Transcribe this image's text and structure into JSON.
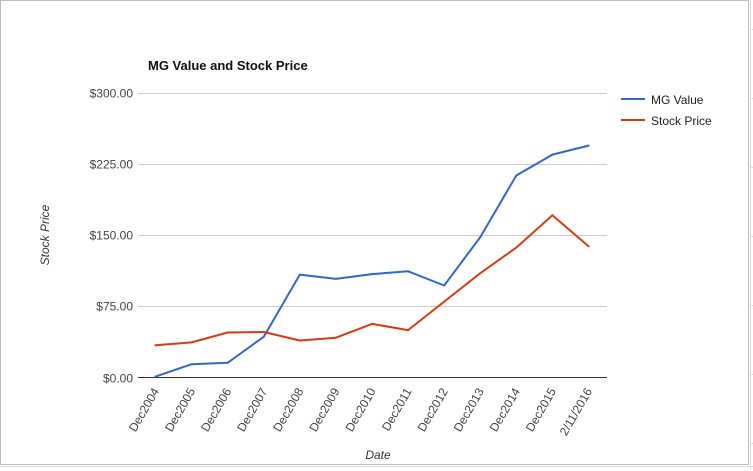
{
  "chart_data": {
    "type": "line",
    "title": "MG Value and Stock Price",
    "xlabel": "Date",
    "ylabel": "Stock Price",
    "categories": [
      "Dec2004",
      "Dec2005",
      "Dec2006",
      "Dec2007",
      "Dec2008",
      "Dec2009",
      "Dec2010",
      "Dec2011",
      "Dec2012",
      "Dec2013",
      "Dec2014",
      "Dec2015",
      "2/11/2016"
    ],
    "ylim": [
      0,
      300
    ],
    "yticks": [
      0,
      75,
      150,
      225,
      300
    ],
    "ytick_labels": [
      "$0.00",
      "$75.00",
      "$150.00",
      "$225.00",
      "$300.00"
    ],
    "grid": true,
    "legend_position": "right",
    "series": [
      {
        "name": "MG Value",
        "color": "#3366cc",
        "values": [
          1,
          14,
          15.5,
          43,
          108.5,
          104,
          109,
          112,
          97,
          148,
          213,
          235,
          244.5
        ]
      },
      {
        "name": "Stock Price",
        "color": "#dc3912",
        "values": [
          34,
          37,
          47.5,
          48,
          39,
          42,
          56.5,
          50,
          80,
          110,
          137,
          171,
          138.5
        ]
      }
    ]
  }
}
